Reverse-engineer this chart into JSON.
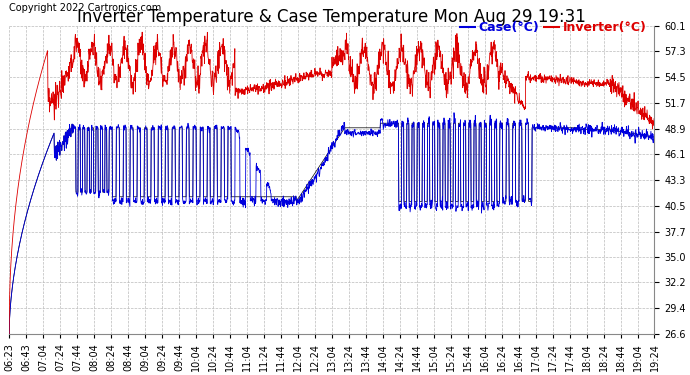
{
  "title": "Inverter Temperature & Case Temperature Mon Aug 29 19:31",
  "copyright": "Copyright 2022 Cartronics.com",
  "legend_case_label": "Case(°C)",
  "legend_inverter_label": "Inverter(°C)",
  "case_color": "#0000dd",
  "inverter_color": "#dd0000",
  "black_color": "#000000",
  "bg_color": "#ffffff",
  "plot_bg_color": "#ffffff",
  "grid_color": "#bbbbbb",
  "title_fontsize": 12,
  "copyright_fontsize": 7,
  "legend_fontsize": 9,
  "tick_fontsize": 7,
  "ylim": [
    26.6,
    60.1
  ],
  "yticks": [
    26.6,
    29.4,
    32.2,
    35.0,
    37.7,
    40.5,
    43.3,
    46.1,
    48.9,
    51.7,
    54.5,
    57.3,
    60.1
  ],
  "xtick_labels": [
    "06:23",
    "06:43",
    "07:04",
    "07:24",
    "07:44",
    "08:04",
    "08:24",
    "08:44",
    "09:04",
    "09:24",
    "09:44",
    "10:04",
    "10:24",
    "10:44",
    "11:04",
    "11:24",
    "11:44",
    "12:04",
    "12:24",
    "13:04",
    "13:24",
    "13:44",
    "14:04",
    "14:24",
    "14:44",
    "15:04",
    "15:24",
    "15:44",
    "16:04",
    "16:24",
    "16:44",
    "17:04",
    "17:24",
    "17:44",
    "18:04",
    "18:24",
    "18:44",
    "19:04",
    "19:24"
  ]
}
